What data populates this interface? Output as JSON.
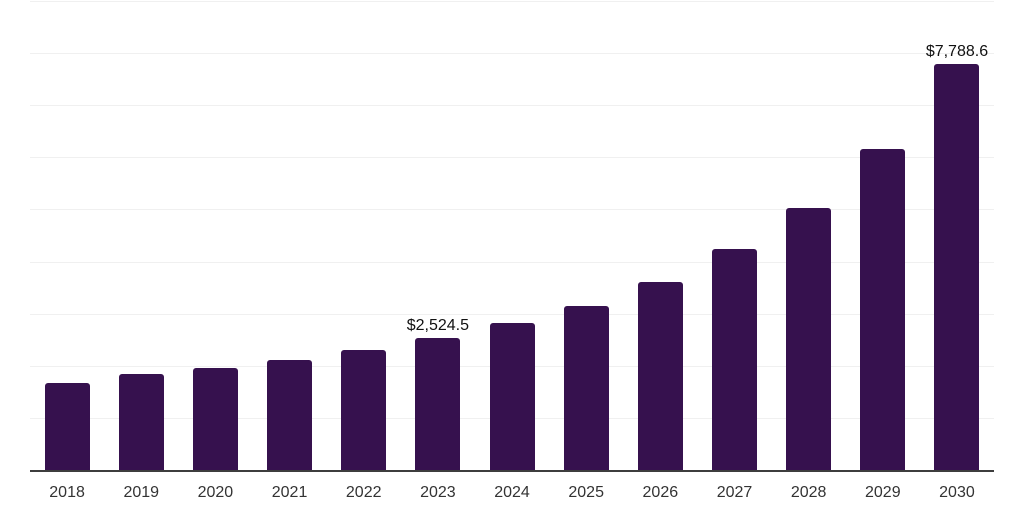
{
  "chart": {
    "background": "#ffffff"
  },
  "chart_data": {
    "type": "bar",
    "title": "",
    "xlabel": "",
    "ylabel": "",
    "categories": [
      "2018",
      "2019",
      "2020",
      "2021",
      "2022",
      "2023",
      "2024",
      "2025",
      "2026",
      "2027",
      "2028",
      "2029",
      "2030"
    ],
    "values": [
      1680,
      1845,
      1960,
      2110,
      2300,
      2524.5,
      2820,
      3150,
      3610,
      4235,
      5025,
      6155,
      7788.6
    ],
    "data_labels": [
      "",
      "",
      "",
      "",
      "",
      "$2,524.5",
      "",
      "",
      "",
      "",
      "",
      "",
      "$7,788.6"
    ],
    "ylim": [
      0,
      9000
    ],
    "gridline_interval": 1000,
    "grid": "horizontal",
    "y_axis_tick_labels_visible": false,
    "legend": false,
    "colors": {
      "bar": "#36114E",
      "grid_line": "#f0f0f0",
      "axis_line": "#3d3d3d",
      "data_label_text": "#111111",
      "tick_label_text": "#333333"
    }
  }
}
